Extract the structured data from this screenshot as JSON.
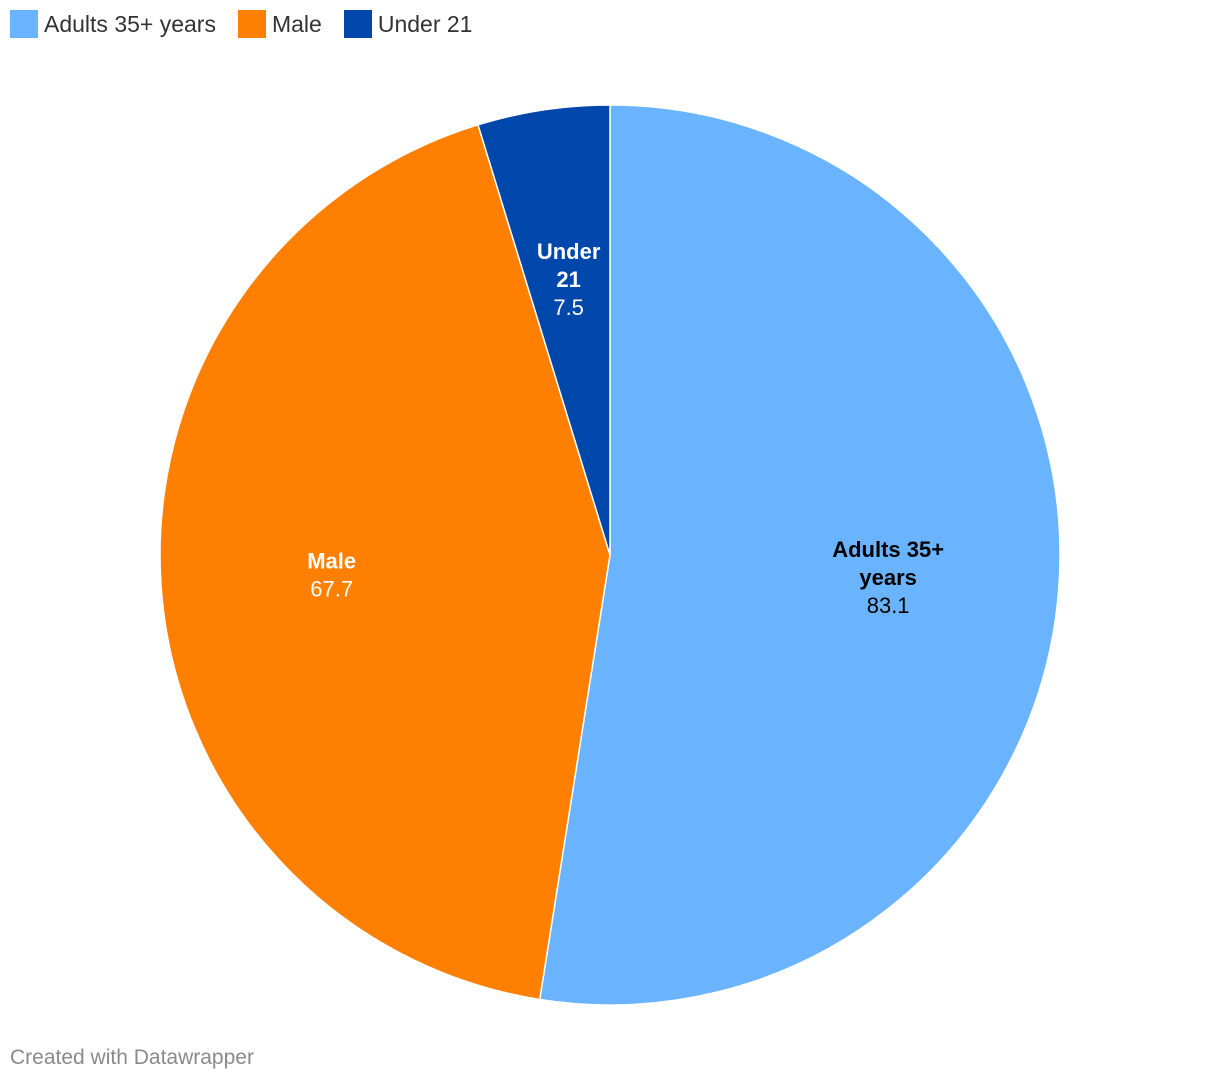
{
  "chart_data": {
    "type": "pie",
    "categories": [
      "Adults 35+ years",
      "Male",
      "Under 21"
    ],
    "values": [
      83.1,
      67.7,
      7.5
    ],
    "value_labels": [
      "83.1",
      "67.7",
      "7.5"
    ],
    "slice_label_lines": [
      [
        "Adults 35+",
        "years"
      ],
      [
        "Male"
      ],
      [
        "Under",
        "21"
      ]
    ],
    "colors": [
      "#6ab4ff",
      "#ff7f00",
      "#0047ab"
    ],
    "label_colors": [
      "#000000",
      "#ffffff",
      "#ffffff"
    ],
    "legend_placement": "top-left",
    "start_angle_deg": 0,
    "direction": "clockwise"
  },
  "footer": {
    "credit": "Created with Datawrapper"
  }
}
